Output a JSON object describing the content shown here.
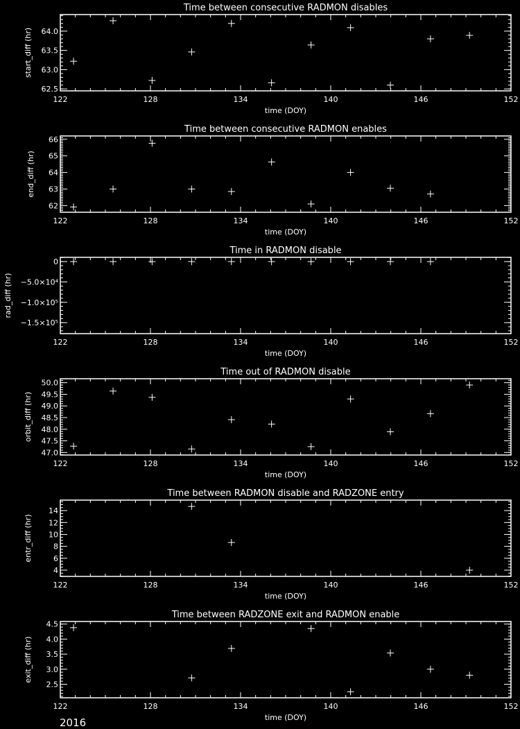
{
  "figure": {
    "year_label": "2016",
    "foreground": "#ffffff",
    "background": "#000000"
  },
  "chart_data": [
    {
      "type": "scatter",
      "marker": "plus",
      "title": "Time between consecutive RADMON disables",
      "xlabel": "time (DOY)",
      "ylabel": "start_diff (hr)",
      "xlim": [
        122,
        152
      ],
      "xticks": [
        "122",
        "128",
        "134",
        "140",
        "146",
        "152"
      ],
      "ylim": [
        62.45,
        64.43
      ],
      "yticks": [
        62.5,
        63.0,
        63.5,
        64.0
      ],
      "ytick_labels": [
        "62.5",
        "63.0",
        "63.5",
        "64.0"
      ],
      "yminor": 0.1,
      "x": [
        122.88,
        125.51,
        128.11,
        130.74,
        133.39,
        136.06,
        138.69,
        141.32,
        143.97,
        146.64,
        149.24
      ],
      "y": [
        63.22,
        64.27,
        62.72,
        63.46,
        64.2,
        62.66,
        63.64,
        64.09,
        62.6,
        63.8,
        63.89
      ]
    },
    {
      "type": "scatter",
      "marker": "plus",
      "title": "Time between consecutive RADMON enables",
      "xlabel": "time (DOY)",
      "ylabel": "end_diff (hr)",
      "xlim": [
        122,
        152
      ],
      "xticks": [
        "122",
        "128",
        "134",
        "140",
        "146",
        "152"
      ],
      "ylim": [
        61.6,
        66.2
      ],
      "yticks": [
        62,
        63,
        64,
        65,
        66
      ],
      "ytick_labels": [
        "62",
        "63",
        "64",
        "65",
        "66"
      ],
      "yminor": 0.1,
      "x": [
        122.88,
        125.51,
        128.11,
        130.74,
        133.39,
        136.06,
        138.69,
        141.32,
        143.97,
        146.64
      ],
      "y": [
        61.92,
        63.0,
        65.76,
        63.0,
        62.85,
        64.63,
        62.1,
        64.0,
        63.05,
        62.7
      ]
    },
    {
      "type": "scatter",
      "marker": "plus",
      "title": "Time in RADMON disable",
      "xlabel": "time (DOY)",
      "ylabel": "rad_diff (hr)",
      "xlim": [
        122,
        152
      ],
      "xticks": [
        "122",
        "128",
        "134",
        "140",
        "146",
        "152"
      ],
      "ylim": [
        -177000,
        10500
      ],
      "yticks": [
        0,
        -50000,
        -100000,
        -150000
      ],
      "ytick_labels": [
        "0",
        "−5.0×10⁴",
        "−1.0×10⁵",
        "−1.5×10⁵"
      ],
      "yminor": 10000,
      "x": [
        122.88,
        125.51,
        128.11,
        130.74,
        133.39,
        136.06,
        138.69,
        141.32,
        143.97,
        146.64
      ],
      "y": [
        0,
        0,
        0,
        0,
        0,
        0,
        0,
        0,
        0,
        0
      ]
    },
    {
      "type": "scatter",
      "marker": "plus",
      "title": "Time out of RADMON disable",
      "xlabel": "time (DOY)",
      "ylabel": "orbit_diff (hr)",
      "xlim": [
        122,
        152
      ],
      "xticks": [
        "122",
        "128",
        "134",
        "140",
        "146",
        "152"
      ],
      "ylim": [
        46.89,
        50.17
      ],
      "yticks": [
        47.0,
        47.5,
        48.0,
        48.5,
        49.0,
        49.5,
        50.0
      ],
      "ytick_labels": [
        "47.0",
        "47.5",
        "48.0",
        "48.5",
        "49.0",
        "49.5",
        "50.0"
      ],
      "yminor": 0.1,
      "x": [
        122.88,
        125.51,
        128.11,
        130.74,
        133.39,
        136.06,
        138.69,
        141.32,
        143.97,
        146.64,
        149.24
      ],
      "y": [
        47.27,
        49.64,
        49.37,
        47.15,
        48.41,
        48.22,
        47.25,
        49.3,
        47.89,
        48.67,
        49.9
      ]
    },
    {
      "type": "scatter",
      "marker": "plus",
      "title": "Time between RADMON disable and RADZONE entry",
      "xlabel": "time (DOY)",
      "ylabel": "entr_diff (hr)",
      "xlim": [
        122,
        152
      ],
      "xticks": [
        "122",
        "128",
        "134",
        "140",
        "146",
        "152"
      ],
      "ylim": [
        2.95,
        15.76
      ],
      "yticks": [
        4,
        6,
        8,
        10,
        12,
        14
      ],
      "ytick_labels": [
        "4",
        "6",
        "8",
        "10",
        "12",
        "14"
      ],
      "yminor": 0.5,
      "x": [
        130.74,
        133.39,
        149.24
      ],
      "y": [
        14.7,
        8.65,
        4.0
      ]
    },
    {
      "type": "scatter",
      "marker": "plus",
      "title": "Time between RADZONE exit and RADMON enable",
      "xlabel": "time (DOY)",
      "ylabel": "exit_diff (hr)",
      "xlim": [
        122,
        152
      ],
      "xticks": [
        "122",
        "128",
        "134",
        "140",
        "146",
        "152"
      ],
      "ylim": [
        2.05,
        4.585
      ],
      "yticks": [
        2.5,
        3.0,
        3.5,
        4.0,
        4.5
      ],
      "ytick_labels": [
        "2.5",
        "3.0",
        "3.5",
        "4.0",
        "4.5"
      ],
      "yminor": 0.1,
      "x": [
        122.88,
        130.74,
        133.39,
        138.69,
        141.32,
        143.97,
        146.64,
        149.24
      ],
      "y": [
        4.38,
        2.71,
        3.69,
        4.35,
        2.25,
        3.54,
        3.0,
        2.8
      ]
    }
  ]
}
